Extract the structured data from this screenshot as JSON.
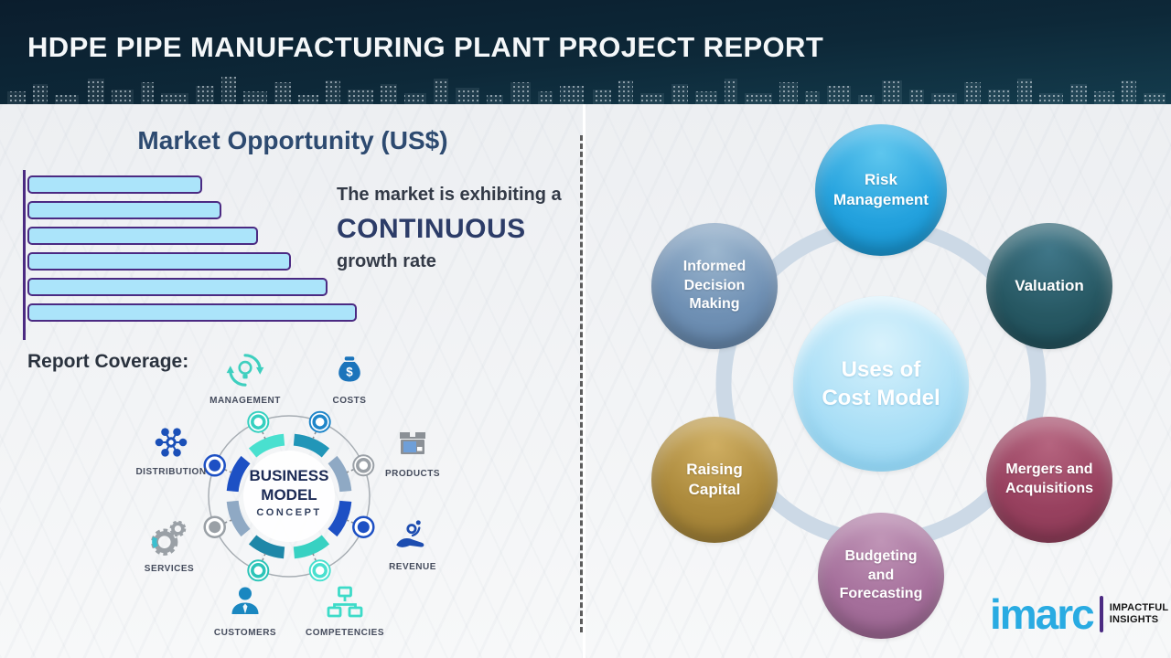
{
  "header": {
    "title": "HDPE PIPE MANUFACTURING PLANT PROJECT REPORT"
  },
  "left_panel": {
    "section_title": "Market Opportunity (US$)",
    "market_note": {
      "intro": "The market is exhibiting a",
      "emphasis": "CONTINUOUS",
      "outro": "growth rate"
    },
    "report_coverage_label": "Report Coverage:",
    "business_model": {
      "center": "BUSINESS\nMODEL",
      "center_sub": "CONCEPT",
      "money_symbol": "$",
      "items": [
        {
          "label": "MANAGEMENT",
          "icon": "management-cycle-icon",
          "color": "#3ecfbf"
        },
        {
          "label": "COSTS",
          "icon": "money-bag-icon",
          "color": "#1b74bb"
        },
        {
          "label": "DISTRIBUTION",
          "icon": "network-hub-icon",
          "color": "#1b50b8"
        },
        {
          "label": "PRODUCTS",
          "icon": "package-box-icon",
          "color": "#8b9096"
        },
        {
          "label": "SERVICES",
          "icon": "gears-icon",
          "color": "#9aa0a6"
        },
        {
          "label": "REVENUE",
          "icon": "hand-coins-icon",
          "color": "#1d4db0"
        },
        {
          "label": "CUSTOMERS",
          "icon": "person-icon",
          "color": "#1a87c0"
        },
        {
          "label": "COMPETENCIES",
          "icon": "org-chart-icon",
          "color": "#3ddbc8"
        }
      ]
    }
  },
  "chart_data": {
    "type": "bar",
    "orientation": "horizontal",
    "title": "Market Opportunity (US$)",
    "categories": [
      "",
      "",
      "",
      "",
      "",
      ""
    ],
    "values": [
      53,
      59,
      70,
      80,
      91,
      100
    ],
    "value_note": "relative bar lengths (no axis labels shown); bars increase steadily to show continuous growth",
    "bar_fill": "#abe4fa",
    "bar_border": "#4b2a82",
    "xlabel": "",
    "ylabel": "",
    "grid": false,
    "legend": false
  },
  "right_panel": {
    "center_label": "Uses of\nCost Model",
    "center_color": "#a8def6",
    "ring_color": "#ccd9e6",
    "satellites": [
      {
        "label": "Risk\nManagement",
        "color": "#24a2de"
      },
      {
        "label": "Valuation",
        "color": "#275863"
      },
      {
        "label": "Informed\nDecision\nMaking",
        "color": "#6f90b4"
      },
      {
        "label": "Raising\nCapital",
        "color": "#ac8a3c"
      },
      {
        "label": "Mergers and\nAcquisitions",
        "color": "#98415f"
      },
      {
        "label": "Budgeting\nand\nForecasting",
        "color": "#a56f9b"
      }
    ]
  },
  "branding": {
    "logo": "imarc",
    "tagline": "IMPACTFUL\nINSIGHTS"
  }
}
